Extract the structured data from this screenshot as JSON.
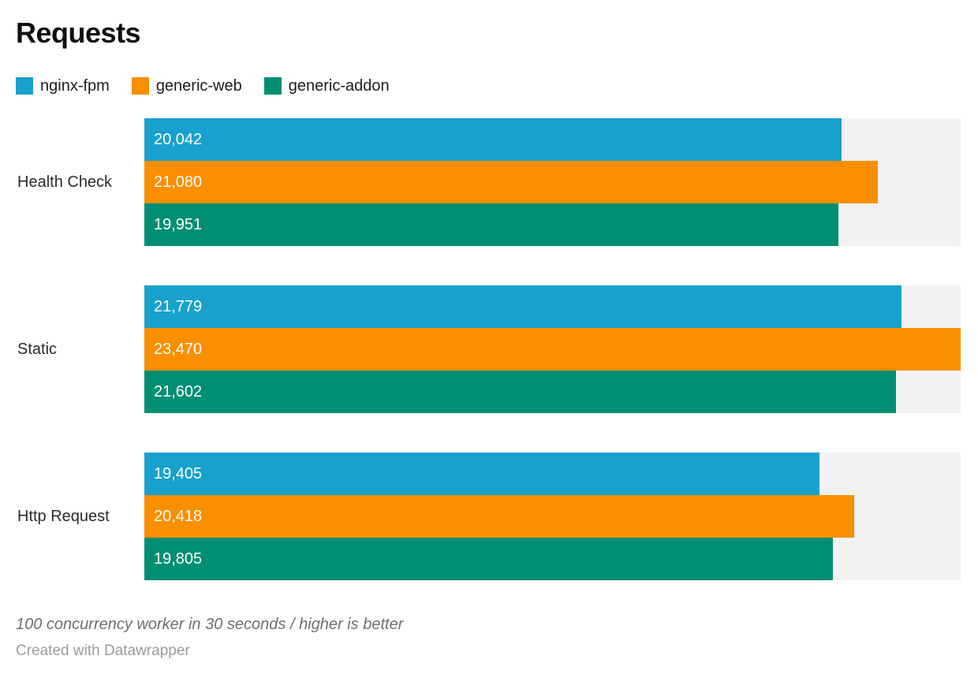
{
  "chart_data": {
    "type": "bar",
    "orientation": "horizontal",
    "title": "Requests",
    "categories": [
      "Health Check",
      "Static",
      "Http Request"
    ],
    "series": [
      {
        "name": "nginx-fpm",
        "color": "#18a1cd",
        "values": [
          20042,
          21779,
          19405
        ],
        "labels": [
          "20,042",
          "21,779",
          "19,405"
        ]
      },
      {
        "name": "generic-web",
        "color": "#f98f00",
        "values": [
          21080,
          23470,
          20418
        ],
        "labels": [
          "21,080",
          "23,470",
          "20,418"
        ]
      },
      {
        "name": "generic-addon",
        "color": "#008f72",
        "values": [
          19951,
          21602,
          19805
        ],
        "labels": [
          "19,951",
          "21,602",
          "19,805"
        ]
      }
    ],
    "xmax": 23470,
    "xlabel": "",
    "ylabel": "",
    "grid": false,
    "legend_position": "top-left",
    "track_color": "#f2f2f2",
    "value_label_color": "#ffffff"
  },
  "footer": {
    "note": "100 concurrency worker in 30 seconds / higher is better",
    "attribution": "Created with Datawrapper"
  }
}
